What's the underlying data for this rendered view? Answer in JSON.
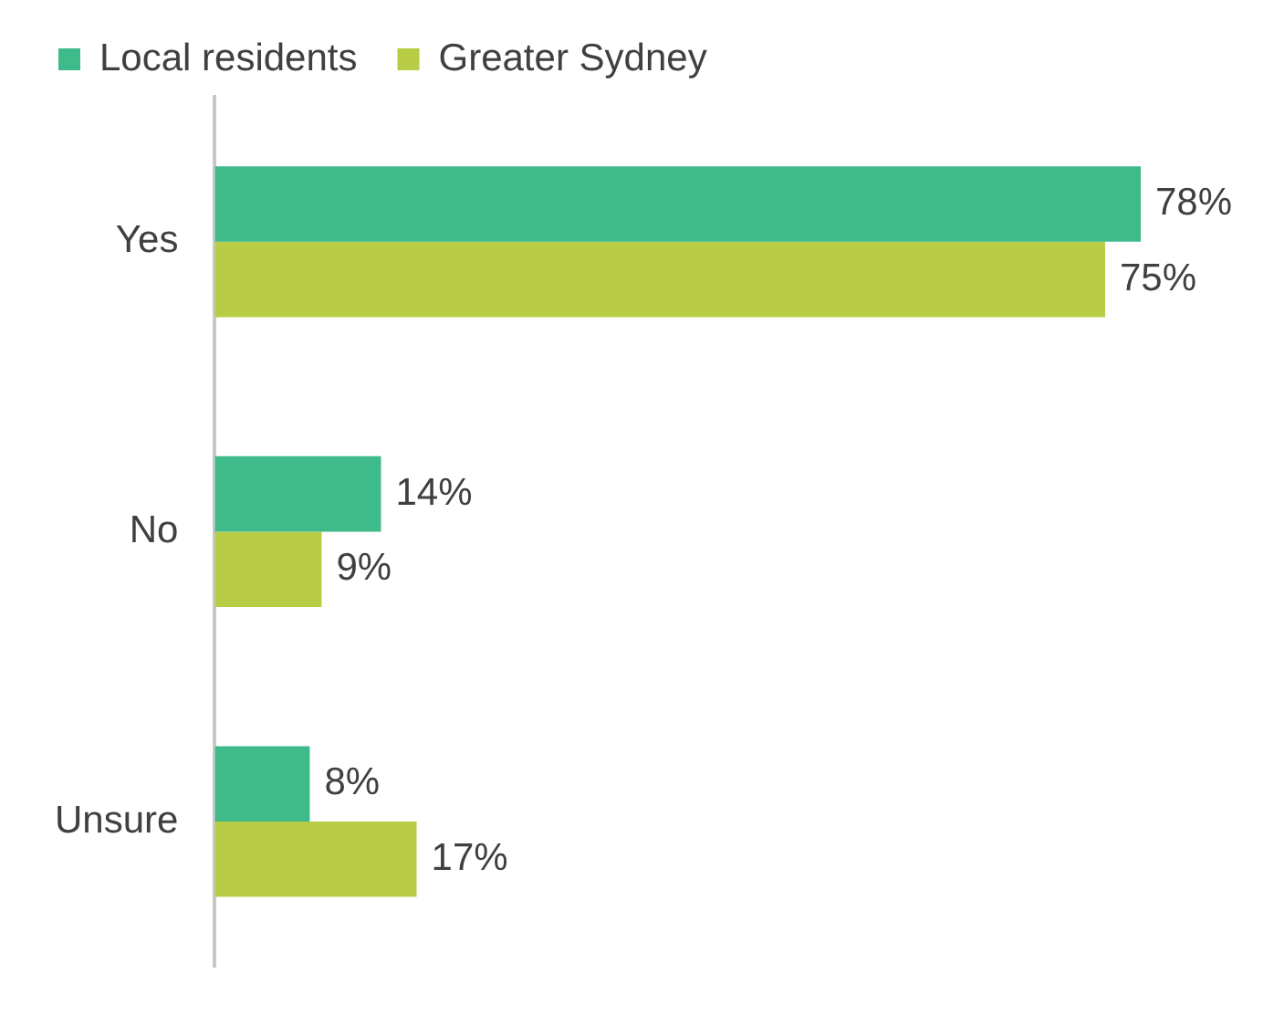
{
  "chart_data": {
    "type": "bar",
    "orientation": "horizontal",
    "categories": [
      "Yes",
      "No",
      "Unsure"
    ],
    "series": [
      {
        "name": "Local residents",
        "color": "#3fba8a",
        "values": [
          78,
          14,
          8
        ],
        "value_labels": [
          "78%",
          "14%",
          "8%"
        ]
      },
      {
        "name": "Greater Sydney",
        "color": "#b8cc45",
        "values": [
          75,
          9,
          17
        ],
        "value_labels": [
          "75%",
          "9%",
          "17%"
        ]
      }
    ],
    "grid": false,
    "legend": "top left"
  }
}
